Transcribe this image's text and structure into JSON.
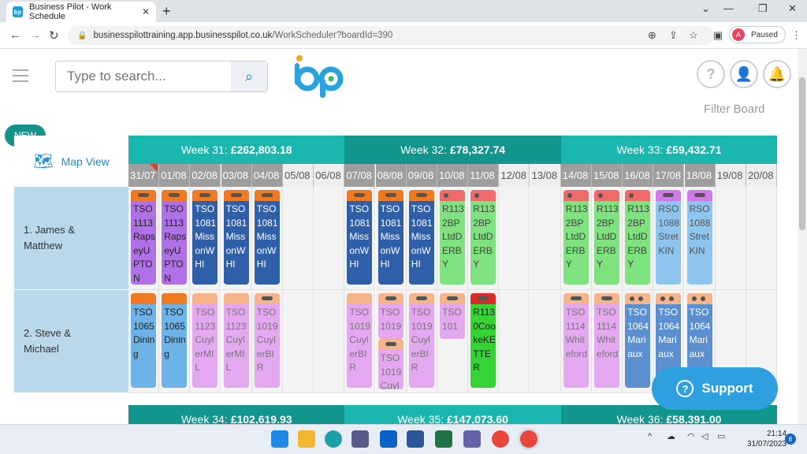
{
  "browser": {
    "tab_title": "Business Pilot - Work Schedule",
    "favicon": "bp",
    "url_host": "businesspilottraining.app.businesspilot.co.uk",
    "url_path": "/WorkScheduler?boardId=390",
    "profile_initial": "A",
    "profile_status": "Paused"
  },
  "app": {
    "search_placeholder": "Type to search...",
    "filter_label": "Filter Board",
    "new_badge": "NEW",
    "map_view": "Map View",
    "support": "Support"
  },
  "weeks": [
    {
      "label": "Week 31:",
      "amount": "£262,803.18",
      "color": "#19b7ad"
    },
    {
      "label": "Week 32:",
      "amount": "£78,327.74",
      "color": "#11958d"
    },
    {
      "label": "Week 33:",
      "amount": "£59,432.71",
      "color": "#19b7ad"
    }
  ],
  "weeks_bottom": [
    {
      "label": "Week 34:",
      "amount": "£102,619.93",
      "color": "#11958d"
    },
    {
      "label": "Week 35:",
      "amount": "£147,073.60",
      "color": "#19b7ad"
    },
    {
      "label": "Week 36:",
      "amount": "£58,391.00",
      "color": "#11958d"
    }
  ],
  "days": [
    "31/07",
    "01/08",
    "02/08",
    "03/08",
    "04/08",
    "05/08",
    "06/08",
    "07/08",
    "08/08",
    "09/08",
    "10/08",
    "11/08",
    "12/08",
    "13/08",
    "14/08",
    "15/08",
    "16/08",
    "17/08",
    "18/08",
    "19/08",
    "20/08"
  ],
  "weekend_idx": [
    5,
    6,
    12,
    13,
    19,
    20
  ],
  "rows": [
    {
      "label": "1. James &\nMatthew"
    },
    {
      "label": "2. Steve &\nMichael"
    }
  ],
  "jobs": [
    {
      "row": 0,
      "day": 0,
      "text": "TSO1113RapseyUPTON",
      "bg": "#b070e8",
      "top": "#f07a22",
      "mark": "pill",
      "color": "#222"
    },
    {
      "row": 0,
      "day": 1,
      "text": "TSO1113RapseyUPTON",
      "bg": "#b070e8",
      "top": "#f07a22",
      "mark": "pill",
      "color": "#222"
    },
    {
      "row": 0,
      "day": 2,
      "text": "TSO1081MissonWHI",
      "bg": "#2f5fa8",
      "top": "#f07a22",
      "mark": "pill",
      "color": "#fff"
    },
    {
      "row": 0,
      "day": 3,
      "text": "TSO1081MissonWHI",
      "bg": "#2f5fa8",
      "top": "#f07a22",
      "mark": "pill",
      "color": "#fff"
    },
    {
      "row": 0,
      "day": 4,
      "text": "TSO1081MissonWHI",
      "bg": "#2f5fa8",
      "top": "#f07a22",
      "mark": "pill",
      "color": "#fff"
    },
    {
      "row": 0,
      "day": 7,
      "text": "TSO1081MissonWHI",
      "bg": "#2f5fa8",
      "top": "#f07a22",
      "mark": "pill",
      "color": "#fff"
    },
    {
      "row": 0,
      "day": 8,
      "text": "TSO1081MissonWHI",
      "bg": "#2f5fa8",
      "top": "#f07a22",
      "mark": "pill",
      "color": "#fff"
    },
    {
      "row": 0,
      "day": 9,
      "text": "TSO1081MissonWHI",
      "bg": "#2f5fa8",
      "top": "#f07a22",
      "mark": "pill",
      "color": "#fff"
    },
    {
      "row": 0,
      "day": 10,
      "text": "R1132BPLtdDERBY",
      "bg": "#7ee27e",
      "top": "#f06a6a",
      "mark": "dot1",
      "color": "#444"
    },
    {
      "row": 0,
      "day": 11,
      "text": "R1132BPLtdDERBY",
      "bg": "#7ee27e",
      "top": "#f06a6a",
      "mark": "dot1",
      "color": "#444"
    },
    {
      "row": 0,
      "day": 14,
      "text": "R1132BPLtdDERBY",
      "bg": "#7ee27e",
      "top": "#f06a6a",
      "mark": "dot1",
      "color": "#444"
    },
    {
      "row": 0,
      "day": 15,
      "text": "R1132BPLtdDERBY",
      "bg": "#7ee27e",
      "top": "#f06a6a",
      "mark": "dot1",
      "color": "#444"
    },
    {
      "row": 0,
      "day": 16,
      "text": "R1132BPLtdDERBY",
      "bg": "#7ee27e",
      "top": "#f06a6a",
      "mark": "dot1",
      "color": "#444"
    },
    {
      "row": 0,
      "day": 17,
      "text": "RSO1088StretKIN",
      "bg": "#8ec5ee",
      "top": "#d07ae8",
      "mark": "pill",
      "color": "#555"
    },
    {
      "row": 0,
      "day": 18,
      "text": "RSO1088StretKIN",
      "bg": "#8ec5ee",
      "top": "#d07ae8",
      "mark": "pill",
      "color": "#555"
    },
    {
      "row": 1,
      "day": 0,
      "text": "TSO1065Dining",
      "bg": "#6db3e8",
      "top": "#f07a22",
      "mark": "none",
      "color": "#222"
    },
    {
      "row": 1,
      "day": 1,
      "text": "TSO1065Dining",
      "bg": "#6db3e8",
      "top": "#f07a22",
      "mark": "none",
      "color": "#222"
    },
    {
      "row": 1,
      "day": 2,
      "text": "TSO1123CuylerMIL",
      "bg": "#e4a8f0",
      "top": "#f6b48a",
      "mark": "none",
      "color": "#777"
    },
    {
      "row": 1,
      "day": 3,
      "text": "TSO1123CuylerMIL",
      "bg": "#e4a8f0",
      "top": "#f6b48a",
      "mark": "none",
      "color": "#777"
    },
    {
      "row": 1,
      "day": 4,
      "text": "TSO1019CuylerBIR",
      "bg": "#e4a8f0",
      "top": "#f6b48a",
      "mark": "pill",
      "color": "#777"
    },
    {
      "row": 1,
      "day": 7,
      "text": "TSO1019CuylerBIR",
      "bg": "#e4a8f0",
      "top": "#f6b48a",
      "mark": "none",
      "color": "#777"
    },
    {
      "row": 1,
      "day": 8,
      "text": "TSO1019",
      "bg": "#e4a8f0",
      "top": "#f6b48a",
      "mark": "pill",
      "color": "#777",
      "short": true
    },
    {
      "row": 1,
      "day": 8,
      "text": "TSO1019Cuyle",
      "bg": "#e4a8f0",
      "top": "#f6b48a",
      "mark": "pill",
      "color": "#777",
      "second": true
    },
    {
      "row": 1,
      "day": 9,
      "text": "TSO1019CuylerBIR",
      "bg": "#e4a8f0",
      "top": "#f6b48a",
      "mark": "pill",
      "color": "#777"
    },
    {
      "row": 1,
      "day": 10,
      "text": "TSO101",
      "bg": "#e4a8f0",
      "top": "#f6b48a",
      "mark": "pill",
      "color": "#777",
      "short": true
    },
    {
      "row": 1,
      "day": 11,
      "text": "R1130CookeKETTER",
      "bg": "#33d433",
      "top": "#e02828",
      "mark": "pill",
      "color": "#222"
    },
    {
      "row": 1,
      "day": 14,
      "text": "TSO1114Whiteford",
      "bg": "#e4a8f0",
      "top": "#f6b48a",
      "mark": "pill",
      "color": "#777"
    },
    {
      "row": 1,
      "day": 15,
      "text": "TSO1114Whiteford",
      "bg": "#e4a8f0",
      "top": "#f6b48a",
      "mark": "pill",
      "color": "#777"
    },
    {
      "row": 1,
      "day": 16,
      "text": "TSO1064Mariaux",
      "bg": "#5b8fcf",
      "top": "#f6b48a",
      "mark": "dot2",
      "color": "#fff"
    },
    {
      "row": 1,
      "day": 17,
      "text": "TSO1064Mariaux",
      "bg": "#5b8fcf",
      "top": "#f6b48a",
      "mark": "dot2",
      "color": "#fff"
    },
    {
      "row": 1,
      "day": 18,
      "text": "TSO1064Mariaux",
      "bg": "#5b8fcf",
      "top": "#f6b48a",
      "mark": "dot2",
      "color": "#fff"
    }
  ],
  "clock": {
    "time": "21:14",
    "date": "31/07/2023",
    "notifications": "8"
  }
}
